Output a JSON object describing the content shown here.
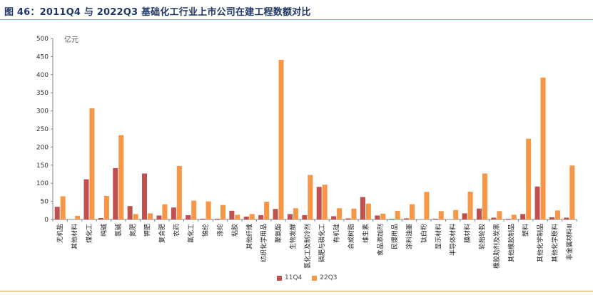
{
  "title": "图 46：2011Q4 与 2022Q3 基础化工行业上市公司在建工程数额对比",
  "chart_data": {
    "type": "bar",
    "ylabel": "亿元",
    "ylim": [
      0,
      500
    ],
    "yticks": [
      0,
      50,
      100,
      150,
      200,
      250,
      300,
      350,
      400,
      450,
      500
    ],
    "categories": [
      "无机盐",
      "其他材料",
      "煤化工",
      "纯碱",
      "氯碱",
      "氮肥",
      "钾肥",
      "复合肥",
      "农药",
      "氟化工",
      "锦纶",
      "涤纶",
      "粘胶",
      "其他纤维",
      "纺织化学用品",
      "聚氨酯",
      "生物发酵",
      "氯化工及制冷剂",
      "磷肥与磷化工",
      "有机硅",
      "合成树脂",
      "维生素",
      "食品添加剂",
      "民爆用品",
      "涂料油墨",
      "钛白粉",
      "显示材料",
      "半导体材料",
      "膜材料",
      "轮胎轮毂",
      "橡胶助剂及炭黑",
      "其他橡胶制品",
      "塑料",
      "其他化学制品",
      "其他化学原料",
      "非金属材料Ⅲ"
    ],
    "series": [
      {
        "name": "11Q4",
        "color": "#c0504d",
        "values": [
          35,
          0,
          111,
          4,
          142,
          37,
          127,
          11,
          33,
          12,
          2,
          2,
          24,
          8,
          12,
          29,
          15,
          12,
          90,
          9,
          3,
          62,
          11,
          2,
          3,
          0,
          2,
          0,
          17,
          30,
          5,
          2,
          15,
          91,
          6,
          5
        ]
      },
      {
        "name": "22Q3",
        "color": "#f79646",
        "values": [
          64,
          10,
          307,
          65,
          233,
          15,
          17,
          42,
          148,
          52,
          50,
          40,
          13,
          15,
          49,
          441,
          31,
          123,
          96,
          31,
          30,
          44,
          16,
          24,
          42,
          76,
          23,
          26,
          77,
          127,
          23,
          13,
          223,
          392,
          25,
          149
        ]
      }
    ],
    "legend_position": "bottom",
    "grid": false
  }
}
